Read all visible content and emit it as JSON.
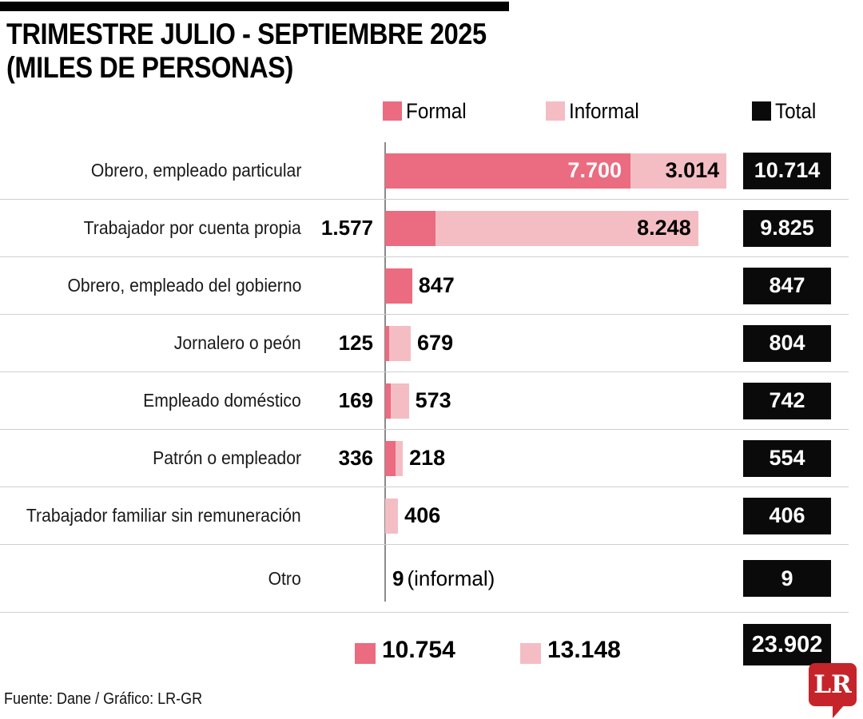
{
  "title": {
    "line1": "TRIMESTRE JULIO - SEPTIEMBRE 2025",
    "line2": "(MILES DE PERSONAS)"
  },
  "legend": [
    {
      "label": "Formal",
      "color": "#eb6b80"
    },
    {
      "label": "Informal",
      "color": "#f4bdc4"
    },
    {
      "label": "Total",
      "color": "#0a0a0a"
    }
  ],
  "chart_data": {
    "type": "bar",
    "orientation": "horizontal",
    "title": "Trimestre julio - septiembre 2025 (miles de personas)",
    "unit": "miles de personas",
    "categories": [
      "Obrero, empleado particular",
      "Trabajador por cuenta propia",
      "Obrero, empleado del gobierno",
      "Jornalero o peón",
      "Empleado doméstico",
      "Patrón o empleador",
      "Trabajador familiar sin remuneración",
      "Otro"
    ],
    "series": [
      {
        "name": "Formal",
        "color": "#eb6b80",
        "values": [
          7700,
          1577,
          847,
          125,
          169,
          336,
          null,
          null
        ]
      },
      {
        "name": "Informal",
        "color": "#f4bdc4",
        "values": [
          3014,
          8248,
          null,
          679,
          573,
          218,
          406,
          9
        ]
      }
    ],
    "totals": [
      10714,
      9825,
      847,
      804,
      742,
      554,
      406,
      9
    ],
    "grand_totals": {
      "formal": 10754,
      "informal": 13148,
      "total": 23902
    },
    "legend_position": "top",
    "grid": false
  },
  "rows": [
    {
      "label": "Obrero, empleado particular",
      "formal_text": "7.700",
      "formal_label": "inside",
      "informal_text": "3.014",
      "informal_label": "inside",
      "total_text": "10.714"
    },
    {
      "label": "Trabajador por cuenta propia",
      "formal_text": "1.577",
      "formal_label": "left",
      "informal_text": "8.248",
      "informal_label": "inside",
      "total_text": "9.825"
    },
    {
      "label": "Obrero, empleado del gobierno",
      "formal_text": "847",
      "formal_label": "after",
      "informal_text": null,
      "informal_label": "none",
      "total_text": "847"
    },
    {
      "label": "Jornalero o peón",
      "formal_text": "125",
      "formal_label": "left",
      "informal_text": "679",
      "informal_label": "after",
      "total_text": "804"
    },
    {
      "label": "Empleado doméstico",
      "formal_text": "169",
      "formal_label": "left",
      "informal_text": "573",
      "informal_label": "after",
      "total_text": "742"
    },
    {
      "label": "Patrón o empleador",
      "formal_text": "336",
      "formal_label": "left",
      "informal_text": "218",
      "informal_label": "after",
      "total_text": "554"
    },
    {
      "label": "Trabajador familiar sin remuneración",
      "formal_text": null,
      "formal_label": "none",
      "informal_text": "406",
      "informal_label": "after",
      "total_text": "406"
    },
    {
      "label": "Otro",
      "formal_text": null,
      "formal_label": "none",
      "informal_text": null,
      "informal_label": "none",
      "total_text": "9",
      "note": {
        "bold": "9",
        "rest": "(informal)"
      }
    }
  ],
  "totals_row": {
    "formal_text": "10.754",
    "informal_text": "13.148",
    "total_text": "23.902"
  },
  "footer": {
    "source": "Fuente: Dane / Gráfico: LR-GR",
    "logo_text": "LR",
    "logo_color": "#c5242b"
  }
}
